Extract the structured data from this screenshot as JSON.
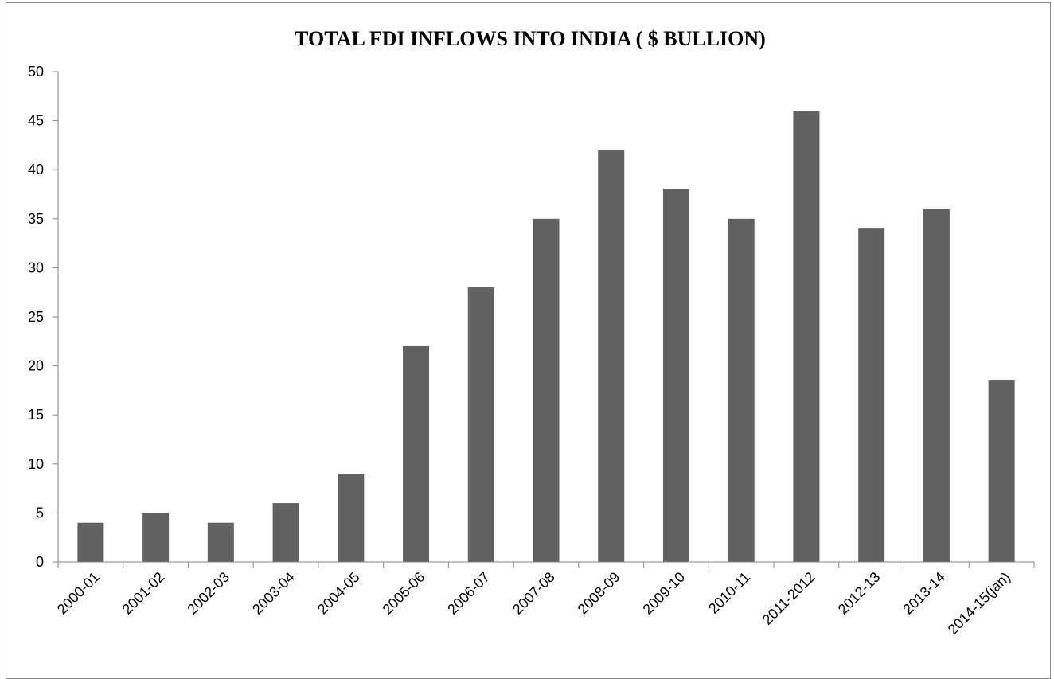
{
  "chart_data": {
    "type": "bar",
    "title": "TOTAL FDI INFLOWS INTO INDIA ( $ BULLION)",
    "xlabel": "",
    "ylabel": "",
    "categories": [
      "2000-01",
      "2001-02",
      "2002-03",
      "2003-04",
      "2004-05",
      "2005-06",
      "2006-07",
      "2007-08",
      "2008-09",
      "2009-10",
      "2010-11",
      "2011-2012",
      "2012-13",
      "2013-14",
      "2014-15(jan)"
    ],
    "values": [
      4,
      5,
      4,
      6,
      9,
      22,
      28,
      35,
      42,
      38,
      35,
      46,
      34,
      36,
      18.5
    ],
    "ylim": [
      0,
      50
    ],
    "yticks": [
      0,
      5,
      10,
      15,
      20,
      25,
      30,
      35,
      40,
      45,
      50
    ],
    "grid": false,
    "legend": "none",
    "bar_color": "#616161",
    "axis_color": "#868686"
  }
}
